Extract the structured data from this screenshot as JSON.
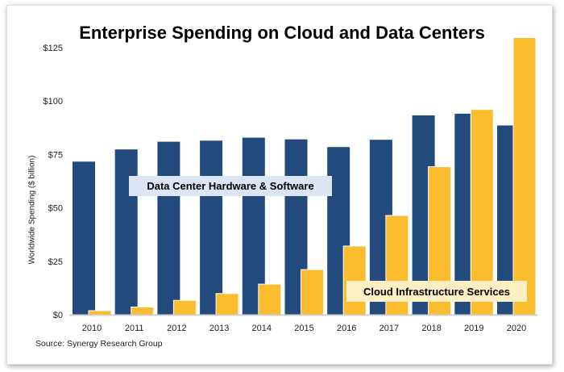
{
  "chart_data": {
    "type": "bar",
    "title": "Enterprise Spending on Cloud and Data Centers",
    "ylabel": "Worldwide Spending ($ billion)",
    "xlabel": "",
    "ylim": [
      0,
      125
    ],
    "yticks": [
      "$0",
      "$25",
      "$50",
      "$75",
      "$100",
      "$125"
    ],
    "ytick_values": [
      0,
      25,
      50,
      75,
      100,
      125
    ],
    "grid": false,
    "categories": [
      "2010",
      "2011",
      "2012",
      "2013",
      "2014",
      "2015",
      "2016",
      "2017",
      "2018",
      "2019",
      "2020"
    ],
    "series": [
      {
        "name": "Data Center Hardware & Software",
        "color": "#234a7c",
        "values": [
          71.6,
          77.3,
          80.9,
          81.4,
          82.8,
          82.0,
          78.4,
          81.8,
          93.2,
          94.0,
          88.5
        ]
      },
      {
        "name": "Cloud Infrastructure Services",
        "color": "#fbbd2e",
        "values": [
          1.9,
          3.6,
          6.7,
          9.9,
          14.3,
          21.1,
          32.1,
          46.4,
          69.2,
          96.0,
          129.6
        ]
      }
    ],
    "legend": "inline labels",
    "source": "Source: Synergy Research Group"
  }
}
